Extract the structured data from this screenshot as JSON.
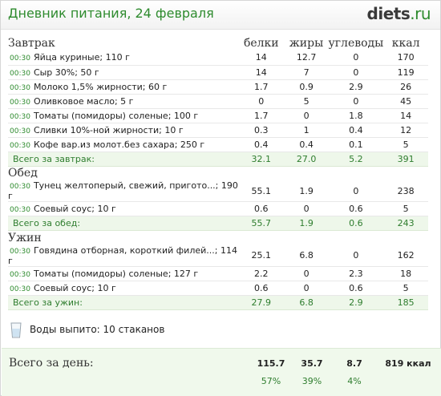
{
  "header": {
    "title": "Дневник питания, 24 февраля",
    "logo_main": "diets",
    "logo_dot": ".",
    "logo_tld": "ru"
  },
  "columns": {
    "protein": "белки",
    "fat": "жиры",
    "carbs": "углеводы",
    "kcal": "ккал"
  },
  "meals": [
    {
      "title": "Завтрак",
      "items": [
        {
          "time": "00:30",
          "food": "Яйца куриные; 110 г",
          "protein": "14",
          "fat": "12.7",
          "carbs": "0",
          "kcal": "170"
        },
        {
          "time": "00:30",
          "food": "Сыр 30%; 50 г",
          "protein": "14",
          "fat": "7",
          "carbs": "0",
          "kcal": "119"
        },
        {
          "time": "00:30",
          "food": "Молоко 1,5% жирности; 60 г",
          "protein": "1.7",
          "fat": "0.9",
          "carbs": "2.9",
          "kcal": "26"
        },
        {
          "time": "00:30",
          "food": "Оливковое масло; 5 г",
          "protein": "0",
          "fat": "5",
          "carbs": "0",
          "kcal": "45"
        },
        {
          "time": "00:30",
          "food": "Томаты (помидоры) соленые; 100 г",
          "protein": "1.7",
          "fat": "0",
          "carbs": "1.8",
          "kcal": "14"
        },
        {
          "time": "00:30",
          "food": "Сливки 10%-ной жирности; 10 г",
          "protein": "0.3",
          "fat": "1",
          "carbs": "0.4",
          "kcal": "12"
        },
        {
          "time": "00:30",
          "food": "Кофе вар.из молот.без сахара; 250 г",
          "protein": "0.4",
          "fat": "0.4",
          "carbs": "0.1",
          "kcal": "5"
        }
      ],
      "total": {
        "label": "Всего за завтрак:",
        "protein": "32.1",
        "fat": "27.0",
        "carbs": "5.2",
        "kcal": "391"
      }
    },
    {
      "title": "Обед",
      "items": [
        {
          "time": "00:30",
          "food": "Тунец желтоперый, свежий, пригото...; 190 г",
          "protein": "55.1",
          "fat": "1.9",
          "carbs": "0",
          "kcal": "238"
        },
        {
          "time": "00:30",
          "food": "Соевый соус; 10 г",
          "protein": "0.6",
          "fat": "0",
          "carbs": "0.6",
          "kcal": "5"
        }
      ],
      "total": {
        "label": "Всего за обед:",
        "protein": "55.7",
        "fat": "1.9",
        "carbs": "0.6",
        "kcal": "243"
      }
    },
    {
      "title": "Ужин",
      "items": [
        {
          "time": "00:30",
          "food": "Говядина отборная, короткий филей...; 114 г",
          "protein": "25.1",
          "fat": "6.8",
          "carbs": "0",
          "kcal": "162"
        },
        {
          "time": "00:30",
          "food": "Томаты (помидоры) соленые; 127 г",
          "protein": "2.2",
          "fat": "0",
          "carbs": "2.3",
          "kcal": "18"
        },
        {
          "time": "00:30",
          "food": "Соевый соус; 10 г",
          "protein": "0.6",
          "fat": "0",
          "carbs": "0.6",
          "kcal": "5"
        }
      ],
      "total": {
        "label": "Всего за ужин:",
        "protein": "27.9",
        "fat": "6.8",
        "carbs": "2.9",
        "kcal": "185"
      }
    }
  ],
  "water": {
    "text": "Воды выпито: 10 стаканов",
    "icon": "glass-icon"
  },
  "day_total": {
    "label": "Всего за день:",
    "protein": "115.7",
    "fat": "35.7",
    "carbs": "8.7",
    "kcal": "819 ккал",
    "protein_pct": "57%",
    "fat_pct": "39%",
    "carbs_pct": "4%"
  },
  "colors": {
    "accent": "#2e8b2e",
    "total_bg": "#eef7ea"
  }
}
